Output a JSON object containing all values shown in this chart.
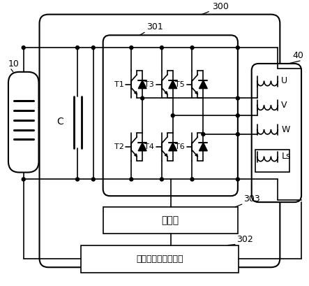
{
  "bg_color": "#ffffff",
  "lc": "#000000",
  "label_300": "300",
  "label_301": "301",
  "label_40": "40",
  "label_10": "10",
  "label_C": "C",
  "label_T1": "T1",
  "label_T2": "T2",
  "label_T3": "T3",
  "label_T4": "T4",
  "label_T5": "T5",
  "label_T6": "T6",
  "label_U": "U",
  "label_V": "V",
  "label_W": "W",
  "label_Ls": "Ls",
  "label_controller": "控制器",
  "label_dcdc": "直流－直流变换电路",
  "label_303": "303",
  "label_302": "302"
}
